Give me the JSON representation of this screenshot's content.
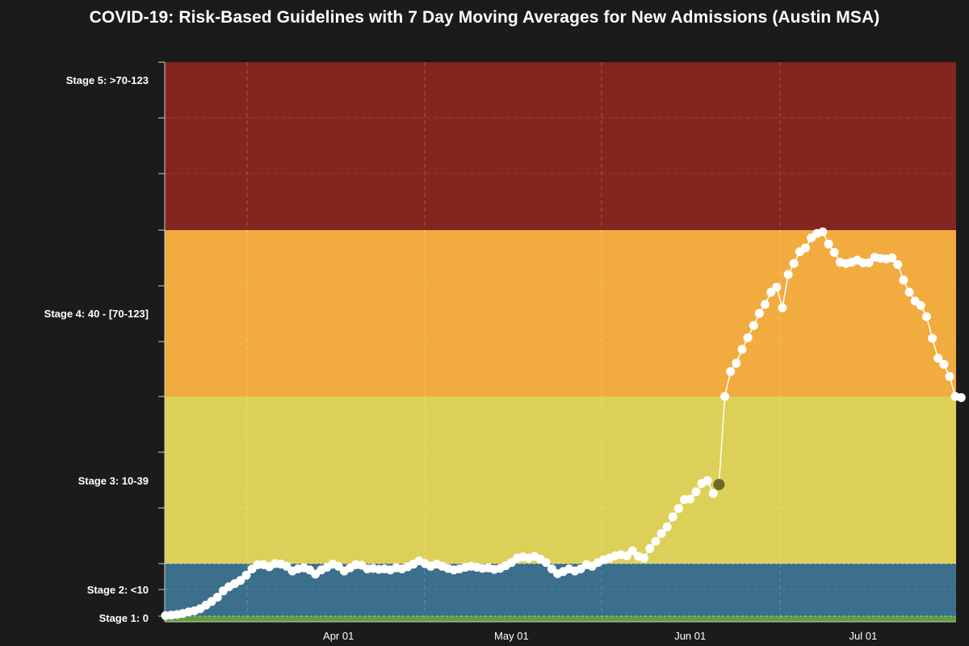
{
  "title": "COVID-19: Risk-Based Guidelines with 7 Day Moving Averages for New Admissions (Austin MSA)",
  "chart_data": {
    "type": "line",
    "title": "COVID-19: Risk-Based Guidelines with 7 Day Moving Averages for New Admissions (Austin MSA)",
    "xlabel": "",
    "ylabel": "",
    "x_start": "2020-03-02",
    "x_end": "2020-07-16",
    "x_ticks": [
      {
        "date": "2020-04-01",
        "label": "Apr 01"
      },
      {
        "date": "2020-05-01",
        "label": "May 01"
      },
      {
        "date": "2020-06-01",
        "label": "Jun 01"
      },
      {
        "date": "2020-07-01",
        "label": "Jul 01"
      }
    ],
    "stages": [
      {
        "label": "Stage 1: 0",
        "color": "#5f9e3a"
      },
      {
        "label": "Stage 2: <10",
        "color": "#3b6f8c"
      },
      {
        "label": "Stage 3: 10-39",
        "color": "#ddd058"
      },
      {
        "label": "Stage 4: 40 - [70-123]",
        "color": "#f2ab3f"
      },
      {
        "label": "Stage 5: >70-123",
        "color": "#82261f"
      }
    ],
    "grid": true,
    "line_color": "#ffffff",
    "highlight_color": "#6b6b26",
    "highlight_date": "2020-06-06",
    "series": [
      {
        "values": [
          [
            "2020-03-02",
            0.1
          ],
          [
            "2020-03-03",
            0.2
          ],
          [
            "2020-03-04",
            0.3
          ],
          [
            "2020-03-05",
            0.5
          ],
          [
            "2020-03-06",
            0.8
          ],
          [
            "2020-03-07",
            1.0
          ],
          [
            "2020-03-08",
            1.4
          ],
          [
            "2020-03-09",
            2.1
          ],
          [
            "2020-03-10",
            2.8
          ],
          [
            "2020-03-11",
            3.6
          ],
          [
            "2020-03-12",
            4.8
          ],
          [
            "2020-03-13",
            5.6
          ],
          [
            "2020-03-14",
            6.2
          ],
          [
            "2020-03-15",
            6.8
          ],
          [
            "2020-03-16",
            7.8
          ],
          [
            "2020-03-17",
            9.0
          ],
          [
            "2020-03-18",
            9.8
          ],
          [
            "2020-03-19",
            9.8
          ],
          [
            "2020-03-20",
            9.4
          ],
          [
            "2020-03-21",
            10.0
          ],
          [
            "2020-03-22",
            9.9
          ],
          [
            "2020-03-23",
            9.5
          ],
          [
            "2020-03-24",
            8.6
          ],
          [
            "2020-03-25",
            9.0
          ],
          [
            "2020-03-26",
            9.2
          ],
          [
            "2020-03-27",
            8.8
          ],
          [
            "2020-03-28",
            8.0
          ],
          [
            "2020-03-29",
            8.8
          ],
          [
            "2020-03-30",
            9.3
          ],
          [
            "2020-03-31",
            9.9
          ],
          [
            "2020-04-01",
            9.5
          ],
          [
            "2020-04-02",
            8.6
          ],
          [
            "2020-04-03",
            9.2
          ],
          [
            "2020-04-04",
            9.8
          ],
          [
            "2020-04-05",
            9.7
          ],
          [
            "2020-04-06",
            9.0
          ],
          [
            "2020-04-07",
            9.1
          ],
          [
            "2020-04-08",
            8.9
          ],
          [
            "2020-04-09",
            9.0
          ],
          [
            "2020-04-10",
            8.8
          ],
          [
            "2020-04-11",
            9.2
          ],
          [
            "2020-04-12",
            9.0
          ],
          [
            "2020-04-13",
            9.4
          ],
          [
            "2020-04-14",
            9.9
          ],
          [
            "2020-04-15",
            10.5
          ],
          [
            "2020-04-16",
            10.0
          ],
          [
            "2020-04-17",
            9.5
          ],
          [
            "2020-04-18",
            9.9
          ],
          [
            "2020-04-19",
            9.5
          ],
          [
            "2020-04-20",
            9.1
          ],
          [
            "2020-04-21",
            8.8
          ],
          [
            "2020-04-22",
            9.0
          ],
          [
            "2020-04-23",
            9.3
          ],
          [
            "2020-04-24",
            9.5
          ],
          [
            "2020-04-25",
            9.3
          ],
          [
            "2020-04-26",
            9.1
          ],
          [
            "2020-04-27",
            9.2
          ],
          [
            "2020-04-28",
            8.9
          ],
          [
            "2020-04-29",
            9.1
          ],
          [
            "2020-04-30",
            9.6
          ],
          [
            "2020-05-01",
            10.2
          ],
          [
            "2020-05-02",
            11.0
          ],
          [
            "2020-05-03",
            11.2
          ],
          [
            "2020-05-04",
            11.0
          ],
          [
            "2020-05-05",
            11.3
          ],
          [
            "2020-05-06",
            10.8
          ],
          [
            "2020-05-07",
            10.2
          ],
          [
            "2020-05-08",
            9.0
          ],
          [
            "2020-05-09",
            8.1
          ],
          [
            "2020-05-10",
            8.5
          ],
          [
            "2020-05-11",
            9.0
          ],
          [
            "2020-05-12",
            8.6
          ],
          [
            "2020-05-13",
            9.0
          ],
          [
            "2020-05-14",
            9.8
          ],
          [
            "2020-05-15",
            9.5
          ],
          [
            "2020-05-16",
            10.2
          ],
          [
            "2020-05-17",
            10.7
          ],
          [
            "2020-05-18",
            11.0
          ],
          [
            "2020-05-19",
            11.4
          ],
          [
            "2020-05-20",
            11.6
          ],
          [
            "2020-05-21",
            11.4
          ],
          [
            "2020-05-22",
            12.3
          ],
          [
            "2020-05-23",
            11.3
          ],
          [
            "2020-05-24",
            11.0
          ],
          [
            "2020-05-25",
            12.7
          ],
          [
            "2020-05-26",
            14.0
          ],
          [
            "2020-05-27",
            15.4
          ],
          [
            "2020-05-28",
            16.6
          ],
          [
            "2020-05-29",
            18.4
          ],
          [
            "2020-05-30",
            19.9
          ],
          [
            "2020-05-31",
            21.5
          ],
          [
            "2020-06-01",
            21.6
          ],
          [
            "2020-06-02",
            22.9
          ],
          [
            "2020-06-03",
            24.4
          ],
          [
            "2020-06-04",
            24.9
          ],
          [
            "2020-06-05",
            22.6
          ],
          [
            "2020-06-06",
            24.2
          ],
          [
            "2020-06-07",
            40.0
          ],
          [
            "2020-06-08",
            44.5
          ],
          [
            "2020-06-09",
            46.0
          ],
          [
            "2020-06-10",
            48.5
          ],
          [
            "2020-06-11",
            50.6
          ],
          [
            "2020-06-12",
            52.8
          ],
          [
            "2020-06-13",
            55.0
          ],
          [
            "2020-06-14",
            56.6
          ],
          [
            "2020-06-15",
            58.8
          ],
          [
            "2020-06-16",
            59.7
          ],
          [
            "2020-06-17",
            56.0
          ],
          [
            "2020-06-18",
            62.0
          ],
          [
            "2020-06-19",
            64.0
          ],
          [
            "2020-06-20",
            66.1
          ],
          [
            "2020-06-21",
            66.8
          ],
          [
            "2020-06-22",
            68.6
          ],
          [
            "2020-06-23",
            69.4
          ],
          [
            "2020-06-24",
            69.7
          ],
          [
            "2020-06-25",
            67.5
          ],
          [
            "2020-06-26",
            66.0
          ],
          [
            "2020-06-27",
            64.2
          ],
          [
            "2020-06-28",
            64.0
          ],
          [
            "2020-06-29",
            64.2
          ],
          [
            "2020-06-30",
            64.6
          ],
          [
            "2020-07-01",
            64.1
          ],
          [
            "2020-07-02",
            64.1
          ],
          [
            "2020-07-03",
            65.1
          ],
          [
            "2020-07-04",
            64.9
          ],
          [
            "2020-07-05",
            64.8
          ],
          [
            "2020-07-06",
            65.0
          ],
          [
            "2020-07-07",
            63.8
          ],
          [
            "2020-07-08",
            61.0
          ],
          [
            "2020-07-09",
            58.8
          ],
          [
            "2020-07-10",
            57.2
          ],
          [
            "2020-07-11",
            56.4
          ],
          [
            "2020-07-12",
            54.4
          ],
          [
            "2020-07-13",
            50.5
          ],
          [
            "2020-07-14",
            46.9
          ],
          [
            "2020-07-15",
            45.8
          ],
          [
            "2020-07-16",
            43.6
          ],
          [
            "2020-07-17",
            40.0
          ],
          [
            "2020-07-18",
            39.8
          ]
        ]
      }
    ]
  }
}
